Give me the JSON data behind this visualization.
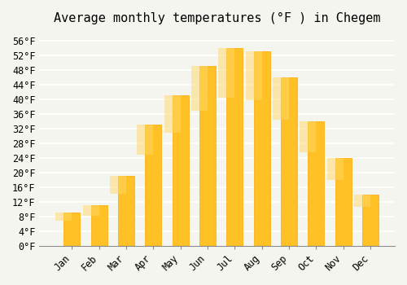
{
  "title": "Average monthly temperatures (°F ) in Chegem",
  "months": [
    "Jan",
    "Feb",
    "Mar",
    "Apr",
    "May",
    "Jun",
    "Jul",
    "Aug",
    "Sep",
    "Oct",
    "Nov",
    "Dec"
  ],
  "values": [
    9,
    11,
    19,
    33,
    41,
    49,
    54,
    53,
    46,
    34,
    24,
    14
  ],
  "bar_color": "#FFC125",
  "bar_edge_color": "#FFA500",
  "background_color": "#F5F5F0",
  "grid_color": "#FFFFFF",
  "ylim": [
    0,
    58
  ],
  "yticks": [
    0,
    4,
    8,
    12,
    16,
    20,
    24,
    28,
    32,
    36,
    40,
    44,
    48,
    52,
    56
  ],
  "ytick_labels": [
    "0°F",
    "4°F",
    "8°F",
    "12°F",
    "16°F",
    "20°F",
    "24°F",
    "28°F",
    "32°F",
    "36°F",
    "40°F",
    "44°F",
    "48°F",
    "52°F",
    "56°F"
  ],
  "title_fontsize": 11,
  "tick_fontsize": 8.5,
  "font_family": "monospace"
}
